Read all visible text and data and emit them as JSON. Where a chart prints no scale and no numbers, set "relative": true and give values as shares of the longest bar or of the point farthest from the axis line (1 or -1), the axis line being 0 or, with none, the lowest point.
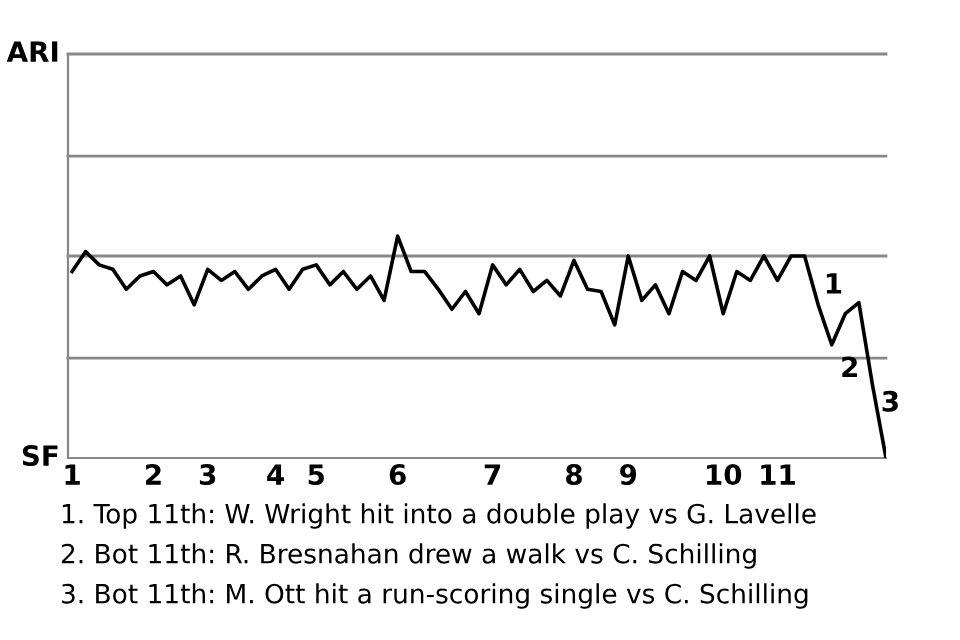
{
  "chart_data": {
    "type": "line",
    "categories": [
      "1",
      null,
      null,
      null,
      null,
      null,
      "2",
      null,
      null,
      null,
      "3",
      null,
      null,
      null,
      null,
      "4",
      null,
      null,
      "5",
      null,
      null,
      null,
      null,
      null,
      "6",
      null,
      null,
      null,
      null,
      null,
      null,
      "7",
      null,
      null,
      null,
      null,
      null,
      "8",
      null,
      null,
      null,
      "9",
      null,
      null,
      null,
      null,
      null,
      null,
      "10",
      null,
      null,
      null,
      "11",
      null,
      null,
      null,
      null,
      null,
      null,
      null,
      null
    ],
    "series": [
      {
        "color": "#000000",
        "values": [
          0.84,
          0.93,
          0.87,
          0.85,
          0.76,
          0.82,
          0.84,
          0.78,
          0.82,
          0.69,
          0.85,
          0.8,
          0.84,
          0.76,
          0.82,
          0.85,
          0.76,
          0.85,
          0.87,
          0.78,
          0.84,
          0.76,
          0.82,
          0.71,
          1,
          0.84,
          0.84,
          0.76,
          0.67,
          0.75,
          0.65,
          0.87,
          0.78,
          0.85,
          0.75,
          0.8,
          0.73,
          0.89,
          0.76,
          0.75,
          0.6,
          0.91,
          0.71,
          0.78,
          0.65,
          0.84,
          0.8,
          0.91,
          0.65,
          0.84,
          0.8,
          0.91,
          0.8,
          0.91,
          0.91,
          0.69,
          0.51,
          0.65,
          0.7,
          0.33,
          0
        ]
      }
    ],
    "relative": true,
    "ref_lines": [
      {
        "axis": "y",
        "value": 0.45,
        "color": "#888888"
      },
      {
        "axis": "y",
        "value": 0.91,
        "color": "#888888"
      },
      {
        "axis": "y",
        "value": 1.36,
        "color": "#888888"
      },
      {
        "axis": "y",
        "value": 1.82,
        "color": "#888888"
      }
    ],
    "marker": "none",
    "line_style": "solid",
    "annotations": [
      "ARI",
      "SF",
      "1",
      "2",
      "3",
      "1. Top 11th: W. Wright hit into a double play vs G. Lavelle",
      "2. Bot 11th: R. Bresnahan drew a walk vs C. Schilling",
      "3. Bot 11th: M. Ott hit a run-scoring single vs C. Schilling"
    ]
  }
}
